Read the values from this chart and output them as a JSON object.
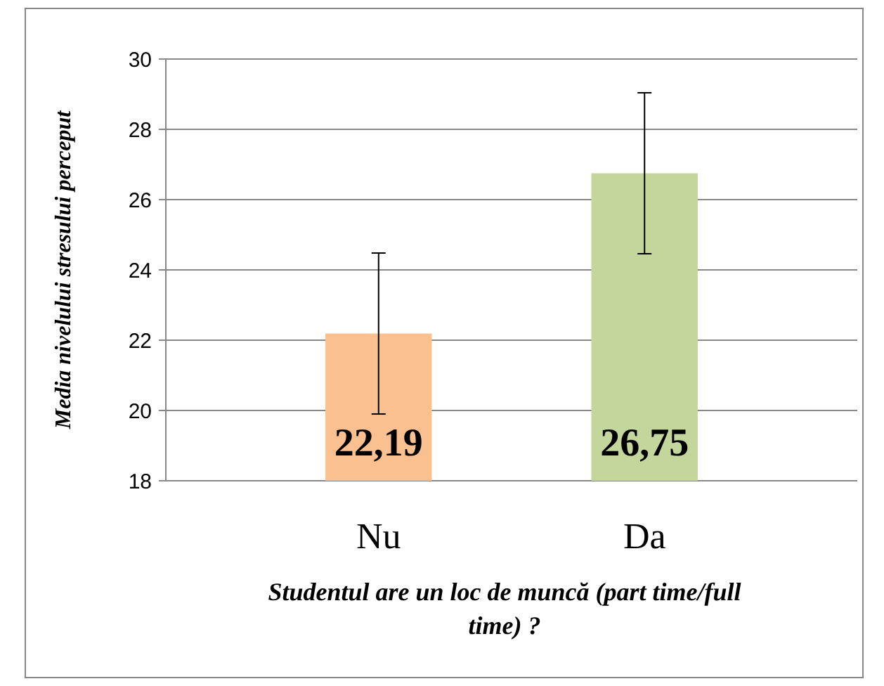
{
  "chart_data": {
    "type": "bar",
    "categories": [
      "Nu",
      "Da"
    ],
    "values": [
      22.19,
      26.75
    ],
    "colors": [
      "#fac090",
      "#c3d69b"
    ],
    "errors": [
      2.29,
      2.29
    ],
    "value_labels": [
      "22,19",
      "26,75"
    ],
    "ylim": [
      18,
      30
    ],
    "yticks": [
      18,
      20,
      22,
      24,
      26,
      28,
      30
    ],
    "grid": "y",
    "ylabel": "Media nivelului stresului perceput",
    "xlabel": "Studentul are un loc de muncă (part time/full time) ?"
  }
}
